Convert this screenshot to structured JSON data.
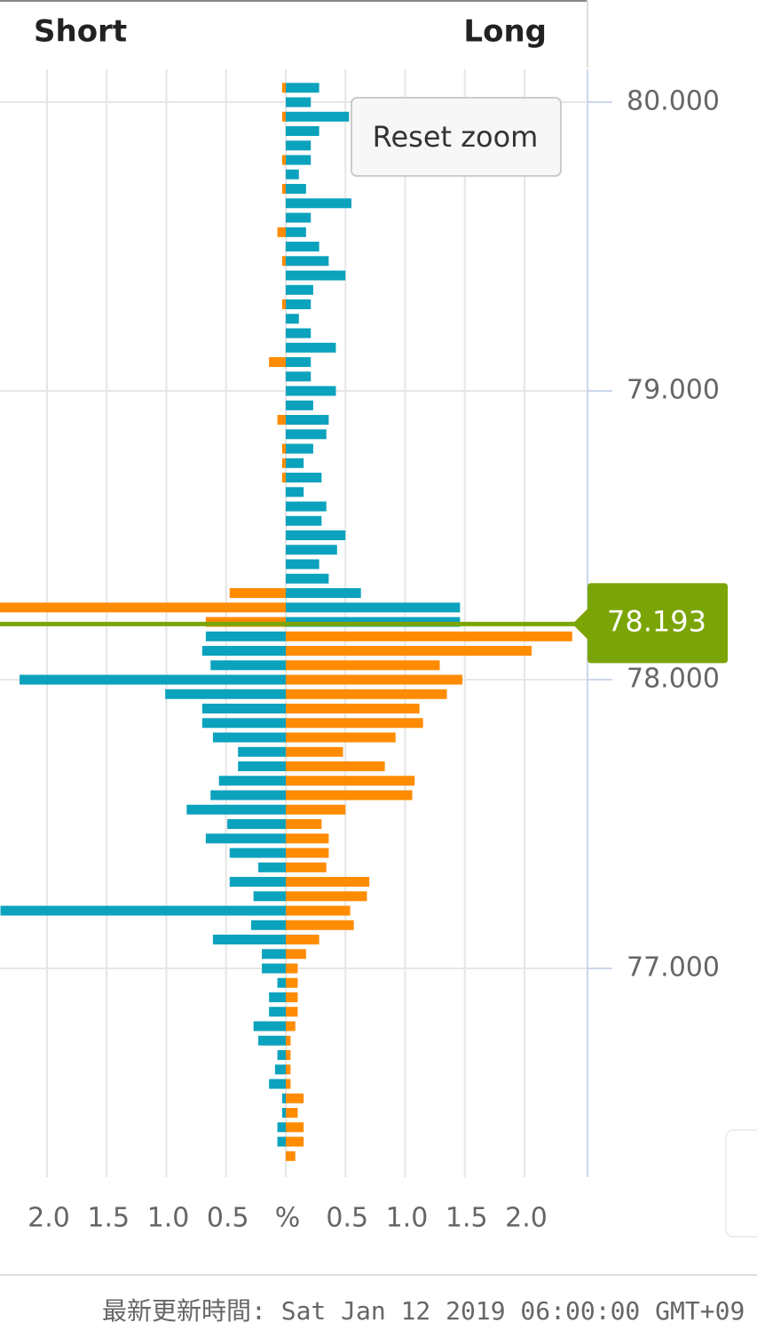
{
  "chart_data": {
    "type": "butterfly-bar",
    "current_price": 78.193,
    "y": [
      80.05,
      80,
      79.95,
      79.9,
      79.85,
      79.8,
      79.75,
      79.7,
      79.65,
      79.6,
      79.55,
      79.5,
      79.45,
      79.4,
      79.35,
      79.3,
      79.25,
      79.2,
      79.15,
      79.1,
      79.05,
      79,
      78.95,
      78.9,
      78.85,
      78.8,
      78.75,
      78.7,
      78.65,
      78.6,
      78.55,
      78.5,
      78.45,
      78.4,
      78.35,
      78.3,
      78.25,
      78.2,
      78.15,
      78.1,
      78.05,
      78,
      77.95,
      77.9,
      77.85,
      77.8,
      77.75,
      77.7,
      77.65,
      77.6,
      77.55,
      77.5,
      77.45,
      77.4,
      77.35,
      77.3,
      77.25,
      77.2,
      77.15,
      77.1,
      77.05,
      77,
      76.95,
      76.9,
      76.85,
      76.8,
      76.75,
      76.7,
      76.65,
      76.6,
      76.55,
      76.5,
      76.45,
      76.4,
      76.35
    ],
    "series": [
      {
        "name": "Short",
        "side": "left",
        "colors": [
          "#ff8b00",
          "#0ba2bd"
        ],
        "values": [
          0.03,
          0,
          0.03,
          0,
          0,
          0.03,
          0,
          0.03,
          0,
          0,
          0.07,
          0,
          0.03,
          0,
          0,
          0.03,
          0,
          0,
          0,
          0.14,
          0,
          0,
          0,
          0.07,
          0,
          0.03,
          0.03,
          0.03,
          0,
          0,
          0,
          0,
          0,
          0,
          0,
          0.47,
          2.5,
          0.67,
          0.67,
          0.7,
          0.63,
          2.23,
          1.01,
          0.7,
          0.7,
          0.61,
          0.4,
          0.4,
          0.56,
          0.63,
          0.83,
          0.49,
          0.67,
          0.47,
          0.23,
          0.47,
          0.27,
          2.39,
          0.29,
          0.61,
          0.2,
          0.2,
          0.07,
          0.14,
          0.14,
          0.27,
          0.23,
          0.07,
          0.09,
          0.14,
          0.03,
          0.03,
          0.07,
          0.07,
          0
        ]
      },
      {
        "name": "Long",
        "side": "right",
        "colors": [
          "#0ba2bd",
          "#ff8b00"
        ],
        "values": [
          0.28,
          0.21,
          0.53,
          0.28,
          0.21,
          0.21,
          0.11,
          0.17,
          0.55,
          0.21,
          0.17,
          0.28,
          0.36,
          0.5,
          0.23,
          0.21,
          0.11,
          0.21,
          0.42,
          0.21,
          0.21,
          0.42,
          0.23,
          0.36,
          0.34,
          0.23,
          0.15,
          0.3,
          0.15,
          0.34,
          0.3,
          0.5,
          0.43,
          0.28,
          0.36,
          0.63,
          1.46,
          1.46,
          2.4,
          2.06,
          1.29,
          1.48,
          1.35,
          1.12,
          1.15,
          0.92,
          0.48,
          0.83,
          1.08,
          1.06,
          0.5,
          0.3,
          0.36,
          0.36,
          0.34,
          0.7,
          0.68,
          0.54,
          0.57,
          0.28,
          0.17,
          0.1,
          0.1,
          0.1,
          0.1,
          0.08,
          0.04,
          0.04,
          0.04,
          0.04,
          0.15,
          0.1,
          0.15,
          0.15,
          0.08
        ]
      }
    ],
    "xlim": [
      -2.394,
      2.528
    ],
    "xticks": [
      {
        "value": -2,
        "label": "2.0"
      },
      {
        "value": -1.5,
        "label": "1.5"
      },
      {
        "value": -1,
        "label": "1.0"
      },
      {
        "value": -0.5,
        "label": "0.5"
      },
      {
        "value": 0,
        "label": "%"
      },
      {
        "value": 0.5,
        "label": "0.5"
      },
      {
        "value": 1,
        "label": "1.0"
      },
      {
        "value": 1.5,
        "label": "1.5"
      },
      {
        "value": 2,
        "label": "2.0"
      }
    ],
    "ylim": [
      76.277,
      80.114
    ],
    "yticks": [
      {
        "value": 80,
        "label": "80.000"
      },
      {
        "value": 79,
        "label": "79.000"
      },
      {
        "value": 78,
        "label": "78.000"
      },
      {
        "value": 77,
        "label": "77.000"
      }
    ],
    "grid": true,
    "current_price_color": "#7ba506"
  },
  "reset_button": "Reset zoom",
  "footer": "最新更新時間: Sat Jan 12 2019 06:00:00 GMT+09"
}
